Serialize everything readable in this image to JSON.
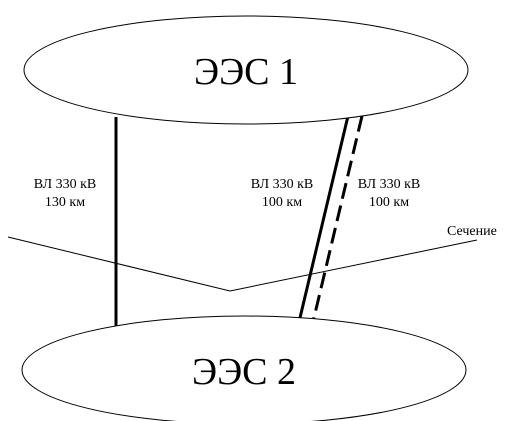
{
  "diagram": {
    "nodes": [
      {
        "id": "ees1",
        "label": "ЭЭС 1"
      },
      {
        "id": "ees2",
        "label": "ЭЭС 2"
      }
    ],
    "lines": [
      {
        "id": "line1",
        "style": "solid",
        "label_line1": "ВЛ 330 кВ",
        "label_line2": "130 км"
      },
      {
        "id": "line2",
        "style": "solid",
        "label_line1": "ВЛ 330 кВ",
        "label_line2": "100 км"
      },
      {
        "id": "line3",
        "style": "dashed",
        "label_line1": "ВЛ 330 кВ",
        "label_line2": "100 км"
      }
    ],
    "section": {
      "label": "Сечение"
    },
    "colors": {
      "stroke": "#000000",
      "background": "#ffffff"
    }
  }
}
